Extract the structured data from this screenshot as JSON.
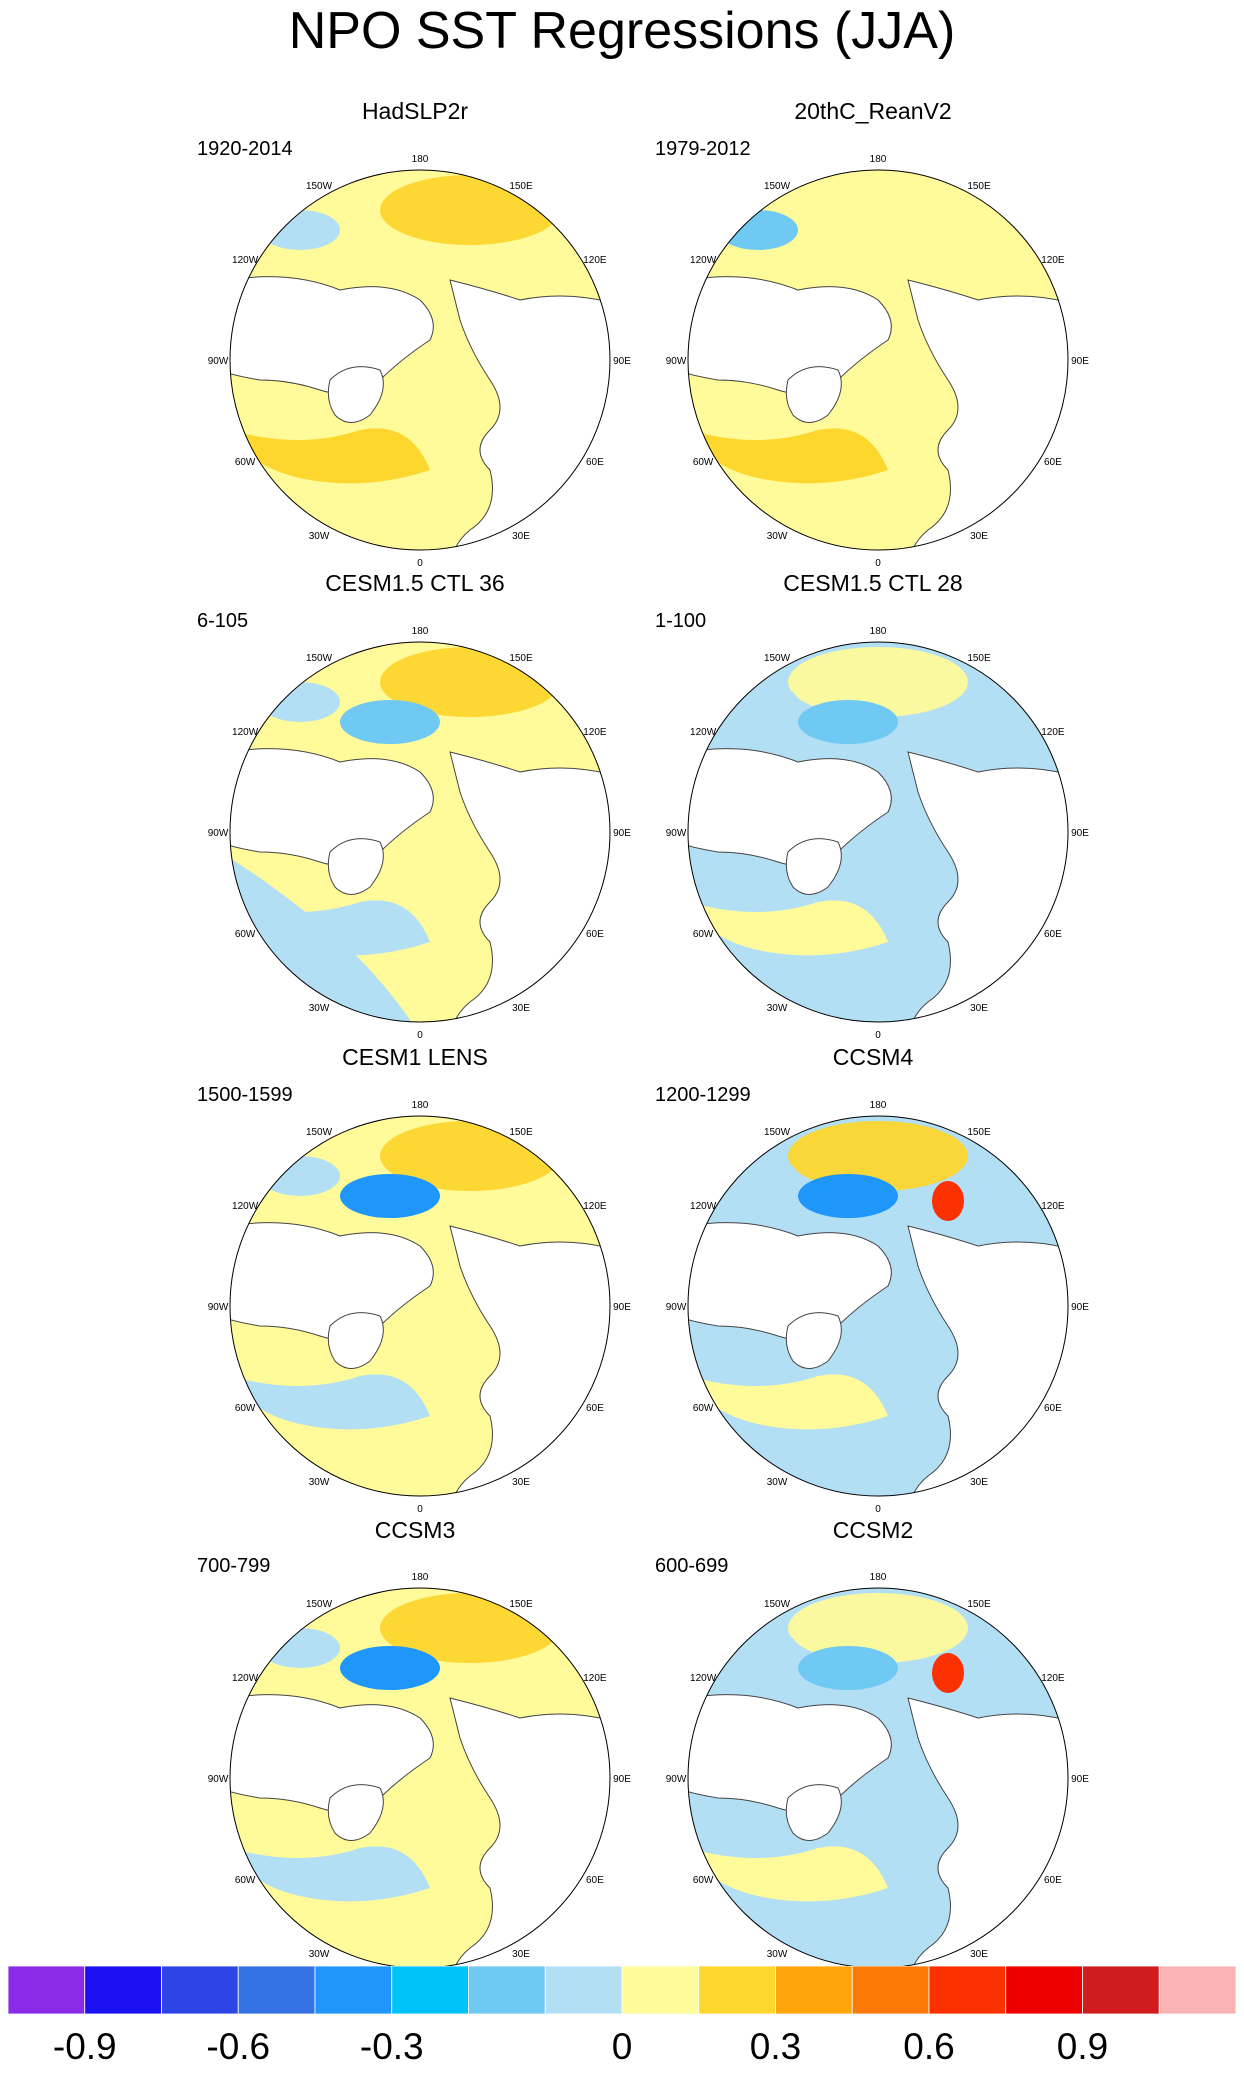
{
  "chart_data": {
    "type": "heatmap",
    "title": "NPO SST Regressions (JJA)",
    "projection": "north polar stereographic",
    "longitude_labels": [
      "180",
      "150E",
      "120E",
      "90E",
      "60E",
      "30E",
      "0",
      "30W",
      "60W",
      "90W",
      "120W",
      "150W"
    ],
    "panels": [
      {
        "name": "HadSLP2r",
        "period": "1920-2014"
      },
      {
        "name": "20thC_ReanV2",
        "period": "1979-2012"
      },
      {
        "name": "CESM1.5 CTL 36",
        "period": "6-105"
      },
      {
        "name": "CESM1.5 CTL 28",
        "period": "1-100"
      },
      {
        "name": "CESM1 LENS",
        "period": "1500-1599"
      },
      {
        "name": "CCSM4",
        "period": "1200-1299"
      },
      {
        "name": "CCSM3",
        "period": "700-799"
      },
      {
        "name": "CCSM2",
        "period": "600-699"
      }
    ],
    "colorbar": {
      "colors": [
        "#8a2be8",
        "#1a10f0",
        "#2e45e6",
        "#3572e6",
        "#1e96fa",
        "#00c3fa",
        "#6fc9f2",
        "#b3dff5",
        "#fffa9a",
        "#fdd62e",
        "#fda50a",
        "#fb7a06",
        "#fc3102",
        "#ed0000",
        "#d01c1c",
        "#fbb4b4"
      ],
      "ticks": [
        "-0.9",
        "-0.6",
        "-0.3",
        "0",
        "0.3",
        "0.6",
        "0.9"
      ]
    }
  }
}
